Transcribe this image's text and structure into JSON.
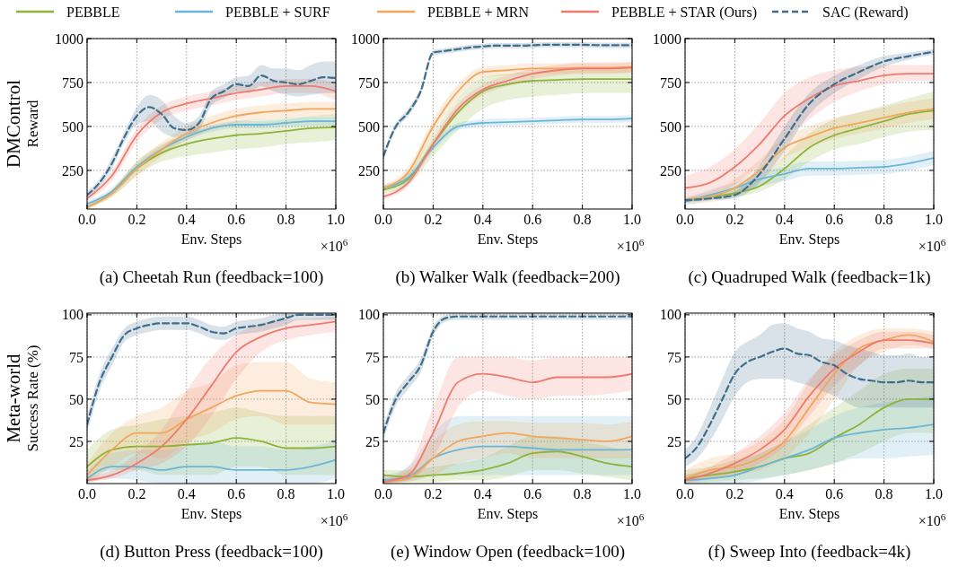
{
  "chart_data": [
    {
      "type": "line",
      "title": "(a) Cheetah Run (feedback=100)",
      "xlabel": "Env. Steps",
      "ylabel": "Reward",
      "annotations": [
        "×10$^{6}$",
        "DMControl"
      ],
      "legend": "top",
      "grid": true,
      "xlim": [
        0,
        1
      ],
      "ylim": [
        30,
        1000
      ],
      "xticks": [
        {
          "value": 0,
          "label": "0.0"
        },
        {
          "value": 0.2,
          "label": "0.2"
        },
        {
          "value": 0.4,
          "label": "0.4"
        },
        {
          "value": 0.6,
          "label": "0.6"
        },
        {
          "value": 0.8,
          "label": "0.8"
        },
        {
          "value": 1,
          "label": "1.0"
        }
      ],
      "yticks": [
        250,
        500,
        750,
        1000
      ],
      "x": [
        0,
        0.1,
        0.2,
        0.3,
        0.4,
        0.5,
        0.6,
        0.7,
        0.8,
        0.9,
        1
      ],
      "series": [
        {
          "name": "PEBBLE",
          "color": "#8db33a",
          "values": [
            40,
            120,
            260,
            350,
            400,
            430,
            450,
            460,
            475,
            490,
            495
          ],
          "lower": [
            30,
            100,
            220,
            300,
            330,
            350,
            370,
            380,
            400,
            410,
            420
          ],
          "upper": [
            50,
            140,
            300,
            400,
            460,
            500,
            530,
            540,
            550,
            560,
            570
          ]
        },
        {
          "name": "PEBBLE + SURF",
          "color": "#6bb6d6",
          "values": [
            60,
            130,
            270,
            370,
            440,
            490,
            510,
            510,
            520,
            530,
            530
          ],
          "lower": [
            45,
            110,
            250,
            350,
            420,
            470,
            490,
            490,
            500,
            505,
            505
          ],
          "upper": [
            75,
            150,
            290,
            390,
            460,
            510,
            530,
            530,
            540,
            555,
            555
          ]
        },
        {
          "name": "PEBBLE + MRN",
          "color": "#f2a65a",
          "values": [
            40,
            120,
            260,
            370,
            460,
            520,
            560,
            580,
            590,
            600,
            600
          ],
          "lower": [
            30,
            100,
            220,
            330,
            420,
            480,
            520,
            540,
            550,
            560,
            560
          ],
          "upper": [
            50,
            140,
            300,
            410,
            500,
            560,
            600,
            620,
            630,
            640,
            640
          ]
        },
        {
          "name": "PEBBLE + STAR (Ours)",
          "color": "#ee7b6d",
          "values": [
            90,
            220,
            450,
            580,
            630,
            660,
            690,
            710,
            730,
            730,
            700
          ],
          "lower": [
            75,
            190,
            410,
            540,
            590,
            620,
            650,
            670,
            690,
            690,
            650
          ],
          "upper": [
            105,
            250,
            490,
            620,
            670,
            700,
            730,
            750,
            770,
            770,
            750
          ]
        },
        {
          "name": "SAC (Reward)",
          "color": "#3f6e8c",
          "line_style": "dashed",
          "x": [
            0,
            0.05,
            0.1,
            0.15,
            0.2,
            0.25,
            0.3,
            0.35,
            0.4,
            0.45,
            0.5,
            0.55,
            0.6,
            0.65,
            0.7,
            0.75,
            0.8,
            0.85,
            0.9,
            0.95,
            1
          ],
          "values": [
            110,
            180,
            290,
            440,
            560,
            610,
            570,
            490,
            480,
            520,
            660,
            700,
            740,
            730,
            790,
            760,
            750,
            740,
            760,
            780,
            775
          ],
          "lower": [
            90,
            160,
            260,
            410,
            510,
            530,
            470,
            440,
            450,
            480,
            620,
            660,
            700,
            690,
            730,
            700,
            680,
            670,
            680,
            690,
            690
          ],
          "upper": [
            130,
            200,
            320,
            470,
            610,
            680,
            650,
            560,
            520,
            560,
            700,
            740,
            780,
            790,
            850,
            830,
            830,
            820,
            850,
            870,
            870
          ]
        }
      ]
    },
    {
      "type": "line",
      "title": "(b) Walker Walk (feedback=200)",
      "xlabel": "Env. Steps",
      "annotations": [
        "×10$^{6}$"
      ],
      "grid": true,
      "xlim": [
        0,
        1
      ],
      "ylim": [
        30,
        1000
      ],
      "xticks": [
        {
          "value": 0,
          "label": "0.0"
        },
        {
          "value": 0.2,
          "label": "0.2"
        },
        {
          "value": 0.4,
          "label": "0.4"
        },
        {
          "value": 0.6,
          "label": "0.6"
        },
        {
          "value": 0.8,
          "label": "0.8"
        },
        {
          "value": 1,
          "label": "1.0"
        }
      ],
      "yticks": [
        250,
        500,
        750,
        1000
      ],
      "x": [
        0,
        0.1,
        0.2,
        0.3,
        0.4,
        0.5,
        0.6,
        0.7,
        0.8,
        0.9,
        1
      ],
      "series": [
        {
          "color": "#8db33a",
          "values": [
            140,
            200,
            400,
            580,
            700,
            740,
            760,
            765,
            770,
            770,
            770
          ],
          "lower": [
            120,
            170,
            330,
            480,
            600,
            650,
            670,
            680,
            690,
            690,
            690
          ],
          "upper": [
            160,
            240,
            460,
            660,
            780,
            800,
            810,
            820,
            830,
            830,
            830
          ]
        },
        {
          "color": "#6bb6d6",
          "values": [
            150,
            210,
            380,
            500,
            520,
            525,
            530,
            535,
            540,
            540,
            545
          ],
          "lower": [
            135,
            190,
            360,
            480,
            500,
            505,
            510,
            515,
            520,
            520,
            525
          ],
          "upper": [
            165,
            230,
            400,
            520,
            540,
            545,
            550,
            555,
            560,
            560,
            565
          ]
        },
        {
          "color": "#f2a65a",
          "values": [
            150,
            240,
            500,
            700,
            810,
            820,
            830,
            830,
            835,
            835,
            840
          ],
          "lower": [
            130,
            210,
            460,
            660,
            780,
            790,
            800,
            800,
            805,
            805,
            810
          ],
          "upper": [
            170,
            270,
            540,
            740,
            840,
            850,
            860,
            860,
            865,
            865,
            870
          ]
        },
        {
          "color": "#ee7b6d",
          "values": [
            100,
            180,
            400,
            600,
            710,
            760,
            800,
            820,
            830,
            830,
            835
          ],
          "lower": [
            85,
            160,
            370,
            570,
            680,
            730,
            770,
            790,
            800,
            800,
            805
          ],
          "upper": [
            115,
            200,
            430,
            630,
            740,
            790,
            830,
            850,
            860,
            860,
            865
          ]
        },
        {
          "color": "#3f6e8c",
          "line_style": "dashed",
          "x": [
            0,
            0.05,
            0.1,
            0.15,
            0.2,
            0.25,
            0.3,
            0.35,
            0.4,
            0.45,
            0.5,
            0.55,
            0.6,
            0.65,
            0.7,
            0.75,
            0.8,
            0.85,
            0.9,
            0.95,
            1
          ],
          "values": [
            330,
            500,
            580,
            700,
            920,
            930,
            940,
            950,
            955,
            960,
            960,
            960,
            962,
            965,
            965,
            965,
            965,
            963,
            962,
            962,
            962
          ],
          "lower": [
            310,
            480,
            560,
            680,
            905,
            915,
            925,
            935,
            940,
            945,
            945,
            945,
            947,
            950,
            950,
            950,
            950,
            948,
            947,
            947,
            947
          ],
          "upper": [
            350,
            520,
            600,
            720,
            935,
            945,
            955,
            965,
            970,
            975,
            975,
            975,
            977,
            980,
            980,
            980,
            980,
            978,
            977,
            977,
            977
          ]
        }
      ]
    },
    {
      "type": "line",
      "title": "(c) Quadruped Walk (feedback=1k)",
      "xlabel": "Env. Steps",
      "annotations": [
        "×10$^{6}$"
      ],
      "grid": true,
      "xlim": [
        0,
        1
      ],
      "ylim": [
        30,
        1000
      ],
      "xticks": [
        {
          "value": 0,
          "label": "0.0"
        },
        {
          "value": 0.2,
          "label": "0.2"
        },
        {
          "value": 0.4,
          "label": "0.4"
        },
        {
          "value": 0.6,
          "label": "0.6"
        },
        {
          "value": 0.8,
          "label": "0.8"
        },
        {
          "value": 1,
          "label": "1.0"
        }
      ],
      "yticks": [
        250,
        500,
        750,
        1000
      ],
      "x": [
        0,
        0.1,
        0.2,
        0.3,
        0.4,
        0.5,
        0.6,
        0.7,
        0.8,
        0.9,
        1
      ],
      "series": [
        {
          "color": "#8db33a",
          "values": [
            80,
            100,
            120,
            160,
            260,
            380,
            450,
            490,
            530,
            570,
            590
          ],
          "lower": [
            70,
            90,
            100,
            130,
            200,
            300,
            370,
            400,
            440,
            470,
            480
          ],
          "upper": [
            90,
            115,
            145,
            200,
            330,
            460,
            540,
            580,
            620,
            660,
            700
          ]
        },
        {
          "color": "#6bb6d6",
          "values": [
            70,
            110,
            150,
            200,
            230,
            260,
            260,
            265,
            270,
            290,
            320
          ],
          "lower": [
            50,
            80,
            120,
            160,
            190,
            220,
            220,
            225,
            230,
            250,
            280
          ],
          "upper": [
            90,
            140,
            180,
            240,
            270,
            300,
            300,
            305,
            310,
            330,
            360
          ]
        },
        {
          "color": "#f2a65a",
          "values": [
            80,
            100,
            150,
            250,
            380,
            440,
            490,
            520,
            550,
            580,
            600
          ],
          "lower": [
            60,
            70,
            100,
            190,
            320,
            380,
            430,
            460,
            490,
            520,
            540
          ],
          "upper": [
            100,
            130,
            200,
            310,
            440,
            500,
            550,
            580,
            610,
            640,
            660
          ]
        },
        {
          "color": "#ee7b6d",
          "values": [
            150,
            180,
            270,
            400,
            560,
            660,
            730,
            760,
            790,
            800,
            800
          ],
          "lower": [
            80,
            100,
            170,
            280,
            420,
            540,
            640,
            700,
            740,
            760,
            760
          ],
          "upper": [
            220,
            270,
            370,
            520,
            690,
            780,
            820,
            840,
            850,
            850,
            850
          ]
        },
        {
          "color": "#3f6e8c",
          "line_style": "dashed",
          "values": [
            80,
            90,
            110,
            230,
            430,
            630,
            740,
            810,
            870,
            900,
            925
          ],
          "lower": [
            70,
            80,
            90,
            180,
            360,
            570,
            690,
            770,
            840,
            880,
            910
          ],
          "upper": [
            90,
            100,
            130,
            280,
            500,
            690,
            790,
            850,
            900,
            920,
            940
          ]
        }
      ]
    },
    {
      "type": "line",
      "title": "(d) Button Press (feedback=100)",
      "xlabel": "Env. Steps",
      "ylabel": "Success Rate (%)",
      "annotations": [
        "×10$^{6}$",
        "Meta-world"
      ],
      "grid": true,
      "xlim": [
        0,
        1
      ],
      "ylim": [
        0,
        101
      ],
      "xticks": [
        {
          "value": 0,
          "label": "0.0"
        },
        {
          "value": 0.2,
          "label": "0.2"
        },
        {
          "value": 0.4,
          "label": "0.4"
        },
        {
          "value": 0.6,
          "label": "0.6"
        },
        {
          "value": 0.8,
          "label": "0.8"
        },
        {
          "value": 1,
          "label": "1.0"
        }
      ],
      "yticks": [
        25,
        50,
        75,
        100
      ],
      "x": [
        0,
        0.1,
        0.2,
        0.3,
        0.4,
        0.5,
        0.6,
        0.7,
        0.8,
        0.9,
        1
      ],
      "series": [
        {
          "color": "#8db33a",
          "values": [
            10,
            20,
            22,
            22,
            23,
            24,
            27,
            25,
            21,
            21,
            22
          ],
          "lower": [
            2,
            8,
            8,
            5,
            5,
            5,
            10,
            10,
            5,
            5,
            5
          ],
          "upper": [
            20,
            32,
            35,
            38,
            40,
            42,
            45,
            42,
            40,
            40,
            40
          ]
        },
        {
          "color": "#6bb6d6",
          "values": [
            3,
            10,
            10,
            8,
            10,
            10,
            8,
            8,
            8,
            10,
            14
          ],
          "lower": [
            0,
            3,
            2,
            0,
            0,
            0,
            0,
            0,
            0,
            0,
            3
          ],
          "upper": [
            8,
            18,
            20,
            20,
            22,
            25,
            22,
            22,
            20,
            22,
            25
          ]
        },
        {
          "color": "#f2a65a",
          "values": [
            5,
            20,
            30,
            30,
            38,
            45,
            52,
            55,
            55,
            48,
            47
          ],
          "lower": [
            0,
            10,
            18,
            15,
            25,
            30,
            38,
            40,
            35,
            35,
            35
          ],
          "upper": [
            12,
            30,
            40,
            45,
            55,
            60,
            70,
            72,
            72,
            62,
            60
          ]
        },
        {
          "color": "#ee7b6d",
          "values": [
            2,
            5,
            12,
            22,
            38,
            58,
            78,
            87,
            92,
            94,
            96
          ],
          "lower": [
            1,
            3,
            8,
            12,
            22,
            40,
            62,
            78,
            85,
            88,
            90
          ],
          "upper": [
            4,
            8,
            18,
            32,
            55,
            75,
            88,
            95,
            97,
            98,
            99
          ]
        },
        {
          "color": "#3f6e8c",
          "line_style": "dashed",
          "x": [
            0,
            0.05,
            0.1,
            0.15,
            0.2,
            0.25,
            0.3,
            0.35,
            0.4,
            0.45,
            0.5,
            0.55,
            0.6,
            0.65,
            0.7,
            0.75,
            0.8,
            0.85,
            0.9,
            0.95,
            1
          ],
          "values": [
            35,
            60,
            75,
            88,
            92,
            94,
            95,
            95,
            95,
            93,
            90,
            89,
            92,
            93,
            94,
            96,
            98,
            100,
            100,
            100,
            100
          ],
          "lower": [
            30,
            55,
            70,
            84,
            88,
            90,
            91,
            91,
            91,
            89,
            86,
            85,
            88,
            89,
            90,
            92,
            94,
            97,
            97,
            97,
            97
          ],
          "upper": [
            40,
            65,
            80,
            92,
            96,
            98,
            99,
            99,
            99,
            97,
            94,
            93,
            96,
            97,
            98,
            100,
            101,
            101,
            101,
            101,
            101
          ]
        }
      ]
    },
    {
      "type": "line",
      "title": "(e) Window Open (feedback=100)",
      "xlabel": "Env. Steps",
      "annotations": [
        "×10$^{6}$"
      ],
      "grid": true,
      "xlim": [
        0,
        1
      ],
      "ylim": [
        0,
        101
      ],
      "xticks": [
        {
          "value": 0,
          "label": "0.0"
        },
        {
          "value": 0.2,
          "label": "0.2"
        },
        {
          "value": 0.4,
          "label": "0.4"
        },
        {
          "value": 0.6,
          "label": "0.6"
        },
        {
          "value": 0.8,
          "label": "0.8"
        },
        {
          "value": 1,
          "label": "1.0"
        }
      ],
      "yticks": [
        25,
        50,
        75,
        100
      ],
      "x": [
        0,
        0.1,
        0.2,
        0.3,
        0.4,
        0.5,
        0.6,
        0.7,
        0.8,
        0.9,
        1
      ],
      "series": [
        {
          "color": "#8db33a",
          "values": [
            5,
            4,
            5,
            6,
            8,
            12,
            18,
            19,
            16,
            12,
            10
          ],
          "lower": [
            1,
            1,
            1,
            2,
            2,
            4,
            8,
            8,
            6,
            4,
            2
          ],
          "upper": [
            8,
            8,
            10,
            12,
            15,
            22,
            28,
            28,
            25,
            22,
            18
          ]
        },
        {
          "color": "#6bb6d6",
          "values": [
            2,
            4,
            15,
            20,
            22,
            22,
            21,
            20,
            20,
            20,
            20
          ],
          "lower": [
            0,
            1,
            5,
            5,
            5,
            5,
            5,
            5,
            5,
            5,
            5
          ],
          "upper": [
            5,
            10,
            30,
            40,
            40,
            40,
            40,
            40,
            40,
            40,
            40
          ]
        },
        {
          "color": "#f2a65a",
          "values": [
            1,
            3,
            15,
            25,
            28,
            30,
            28,
            27,
            26,
            25,
            28
          ],
          "lower": [
            0,
            1,
            5,
            12,
            15,
            18,
            15,
            15,
            15,
            15,
            15
          ],
          "upper": [
            3,
            8,
            25,
            35,
            37,
            37,
            36,
            36,
            36,
            35,
            37
          ]
        },
        {
          "color": "#ee7b6d",
          "values": [
            1,
            5,
            30,
            60,
            65,
            63,
            60,
            63,
            63,
            63,
            65
          ],
          "lower": [
            0,
            2,
            15,
            45,
            55,
            52,
            50,
            52,
            52,
            53,
            55
          ],
          "upper": [
            3,
            10,
            45,
            75,
            75,
            75,
            73,
            75,
            75,
            75,
            75
          ]
        },
        {
          "color": "#3f6e8c",
          "line_style": "dashed",
          "x": [
            0,
            0.05,
            0.1,
            0.15,
            0.2,
            0.25,
            0.3,
            0.35,
            0.4,
            0.45,
            0.5,
            0.55,
            0.6,
            0.65,
            0.7,
            0.75,
            0.8,
            0.85,
            0.9,
            0.95,
            1
          ],
          "values": [
            30,
            50,
            60,
            70,
            90,
            98,
            99,
            99,
            99,
            99,
            99,
            99,
            99,
            99,
            99,
            99,
            99,
            99,
            99,
            99,
            99
          ],
          "lower": [
            26,
            46,
            56,
            66,
            87,
            96,
            97,
            97,
            97,
            97,
            97,
            97,
            97,
            97,
            97,
            97,
            97,
            97,
            97,
            97,
            97
          ],
          "upper": [
            34,
            54,
            64,
            74,
            93,
            100,
            101,
            101,
            101,
            101,
            101,
            101,
            101,
            101,
            101,
            101,
            101,
            101,
            101,
            101,
            101
          ]
        }
      ]
    },
    {
      "type": "line",
      "title": "(f) Sweep Into (feedback=4k)",
      "xlabel": "Env. Steps",
      "annotations": [
        "×10$^{6}$"
      ],
      "grid": true,
      "xlim": [
        0,
        1
      ],
      "ylim": [
        0,
        101
      ],
      "xticks": [
        {
          "value": 0,
          "label": "0.0"
        },
        {
          "value": 0.2,
          "label": "0.2"
        },
        {
          "value": 0.4,
          "label": "0.4"
        },
        {
          "value": 0.6,
          "label": "0.6"
        },
        {
          "value": 0.8,
          "label": "0.8"
        },
        {
          "value": 1,
          "label": "1.0"
        }
      ],
      "yticks": [
        25,
        50,
        75,
        100
      ],
      "x": [
        0,
        0.1,
        0.2,
        0.3,
        0.4,
        0.5,
        0.6,
        0.7,
        0.8,
        0.9,
        1
      ],
      "series": [
        {
          "color": "#8db33a",
          "values": [
            3,
            5,
            7,
            10,
            15,
            18,
            27,
            35,
            45,
            50,
            50
          ],
          "lower": [
            0,
            1,
            2,
            3,
            5,
            8,
            12,
            18,
            25,
            30,
            30
          ],
          "upper": [
            8,
            10,
            14,
            18,
            25,
            35,
            45,
            55,
            65,
            68,
            68
          ]
        },
        {
          "color": "#6bb6d6",
          "values": [
            2,
            3,
            5,
            10,
            15,
            20,
            27,
            30,
            32,
            33,
            35
          ],
          "lower": [
            0,
            0,
            0,
            2,
            5,
            8,
            12,
            15,
            15,
            16,
            17
          ],
          "upper": [
            5,
            8,
            12,
            18,
            25,
            32,
            40,
            45,
            48,
            50,
            52
          ]
        },
        {
          "color": "#f2a65a",
          "values": [
            3,
            8,
            10,
            15,
            25,
            45,
            65,
            80,
            85,
            88,
            84
          ],
          "lower": [
            0,
            3,
            5,
            8,
            15,
            30,
            50,
            70,
            78,
            82,
            80
          ],
          "upper": [
            8,
            15,
            18,
            25,
            38,
            60,
            78,
            88,
            92,
            92,
            90
          ]
        },
        {
          "color": "#ee7b6d",
          "values": [
            2,
            6,
            12,
            20,
            32,
            52,
            68,
            78,
            85,
            85,
            83
          ],
          "lower": [
            0,
            3,
            6,
            12,
            22,
            40,
            58,
            70,
            80,
            80,
            80
          ],
          "upper": [
            5,
            10,
            18,
            28,
            42,
            62,
            76,
            85,
            90,
            90,
            88
          ]
        },
        {
          "color": "#3f6e8c",
          "line_style": "dashed",
          "x": [
            0,
            0.05,
            0.1,
            0.15,
            0.2,
            0.25,
            0.3,
            0.35,
            0.4,
            0.45,
            0.5,
            0.55,
            0.6,
            0.65,
            0.7,
            0.75,
            0.8,
            0.85,
            0.9,
            0.95,
            1
          ],
          "values": [
            15,
            22,
            35,
            50,
            65,
            72,
            75,
            78,
            80,
            77,
            76,
            72,
            70,
            65,
            62,
            61,
            60,
            60,
            61,
            60,
            60
          ],
          "lower": [
            10,
            15,
            25,
            38,
            52,
            60,
            62,
            62,
            62,
            60,
            58,
            55,
            52,
            48,
            45,
            45,
            45,
            45,
            45,
            45,
            45
          ],
          "upper": [
            20,
            29,
            45,
            62,
            78,
            84,
            88,
            94,
            95,
            92,
            90,
            86,
            85,
            82,
            80,
            78,
            76,
            76,
            77,
            75,
            75
          ]
        }
      ]
    }
  ]
}
